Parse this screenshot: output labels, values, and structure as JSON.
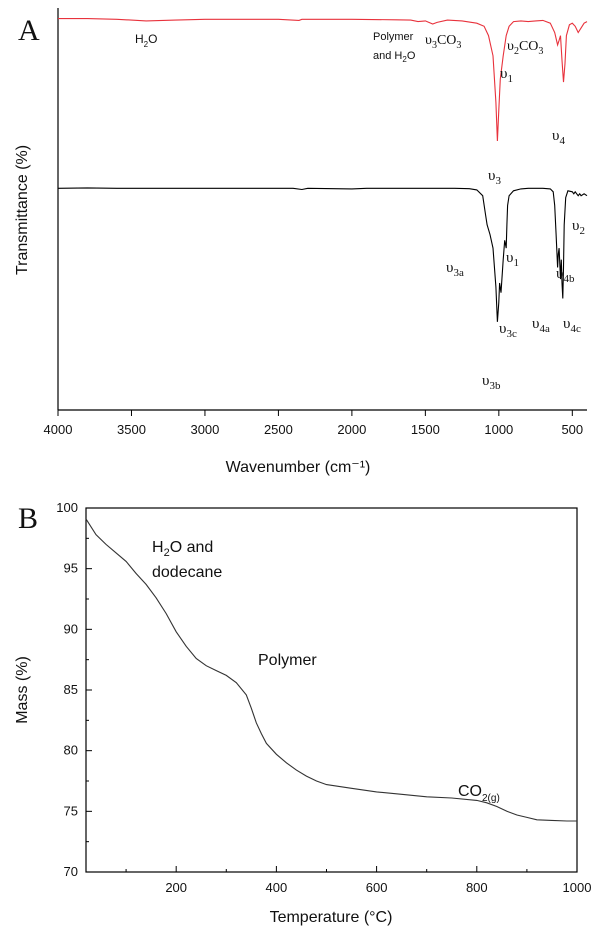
{
  "chart_data": [
    {
      "type": "line",
      "panel_label": "A",
      "xlabel": "Wavenumber (cm⁻¹)",
      "ylabel": "Transmittance (%)",
      "xlim": [
        4000,
        400
      ],
      "x_ticks": [
        4000,
        3500,
        3000,
        2500,
        2000,
        1500,
        1000,
        500
      ],
      "y_ticks_shown": false,
      "series": [
        {
          "color": "#e8323c",
          "points": [
            [
              4000,
              99
            ],
            [
              3800,
              99
            ],
            [
              3600,
              98.5
            ],
            [
              3400,
              97.5
            ],
            [
              3200,
              98
            ],
            [
              3000,
              98.5
            ],
            [
              2700,
              98.5
            ],
            [
              2500,
              98.5
            ],
            [
              2360,
              97.8
            ],
            [
              2340,
              98.5
            ],
            [
              2000,
              98.5
            ],
            [
              1700,
              98.2
            ],
            [
              1600,
              98
            ],
            [
              1550,
              97
            ],
            [
              1500,
              97.5
            ],
            [
              1450,
              95.5
            ],
            [
              1420,
              96.5
            ],
            [
              1350,
              98
            ],
            [
              1250,
              97.5
            ],
            [
              1150,
              96
            ],
            [
              1100,
              94
            ],
            [
              1070,
              88
            ],
            [
              1040,
              75
            ],
            [
              1020,
              45
            ],
            [
              1010,
              20
            ],
            [
              1000,
              40
            ],
            [
              990,
              60
            ],
            [
              970,
              75
            ],
            [
              950,
              88
            ],
            [
              930,
              94
            ],
            [
              900,
              97
            ],
            [
              850,
              97.5
            ],
            [
              800,
              97
            ],
            [
              750,
              97.5
            ],
            [
              700,
              97.8
            ],
            [
              650,
              96
            ],
            [
              620,
              90
            ],
            [
              600,
              82
            ],
            [
              590,
              85
            ],
            [
              580,
              88
            ],
            [
              570,
              72
            ],
            [
              560,
              58
            ],
            [
              550,
              70
            ],
            [
              540,
              88
            ],
            [
              520,
              95
            ],
            [
              500,
              96
            ],
            [
              480,
              94
            ],
            [
              460,
              90
            ],
            [
              440,
              93
            ],
            [
              420,
              96
            ],
            [
              400,
              97
            ]
          ]
        },
        {
          "color": "#000000",
          "points": [
            [
              4000,
              98.8
            ],
            [
              3800,
              99
            ],
            [
              3600,
              98.8
            ],
            [
              3400,
              98.8
            ],
            [
              3200,
              98.8
            ],
            [
              3000,
              98.8
            ],
            [
              2700,
              98.8
            ],
            [
              2400,
              98.8
            ],
            [
              2340,
              98.2
            ],
            [
              2300,
              98.8
            ],
            [
              2000,
              98.5
            ],
            [
              1900,
              98.8
            ],
            [
              1700,
              98.8
            ],
            [
              1500,
              98.8
            ],
            [
              1300,
              98.8
            ],
            [
              1200,
              98.6
            ],
            [
              1150,
              98
            ],
            [
              1110,
              95
            ],
            [
              1090,
              85
            ],
            [
              1080,
              80
            ],
            [
              1060,
              75
            ],
            [
              1040,
              68
            ],
            [
              1020,
              48
            ],
            [
              1010,
              30
            ],
            [
              1000,
              40
            ],
            [
              995,
              50
            ],
            [
              985,
              45
            ],
            [
              970,
              62
            ],
            [
              960,
              72
            ],
            [
              950,
              68
            ],
            [
              945,
              80
            ],
            [
              940,
              90
            ],
            [
              930,
              95
            ],
            [
              900,
              97.5
            ],
            [
              850,
              98.5
            ],
            [
              800,
              98.8
            ],
            [
              750,
              98.8
            ],
            [
              700,
              98.8
            ],
            [
              650,
              98.5
            ],
            [
              630,
              97
            ],
            [
              620,
              90
            ],
            [
              610,
              75
            ],
            [
              600,
              58
            ],
            [
              595,
              65
            ],
            [
              590,
              68
            ],
            [
              580,
              52
            ],
            [
              575,
              62
            ],
            [
              570,
              50
            ],
            [
              565,
              42
            ],
            [
              560,
              58
            ],
            [
              555,
              80
            ],
            [
              545,
              94
            ],
            [
              530,
              97.5
            ],
            [
              500,
              97
            ],
            [
              490,
              96
            ],
            [
              480,
              97
            ],
            [
              470,
              96
            ],
            [
              460,
              95
            ],
            [
              450,
              96
            ],
            [
              440,
              95
            ],
            [
              420,
              96
            ],
            [
              400,
              95
            ]
          ]
        }
      ],
      "annotations": {
        "h2o": {
          "main": "H",
          "sub": "2",
          "rest": "O"
        },
        "polymer": {
          "line1": "Polymer",
          "line2": "and H",
          "sub": "2",
          "rest": "O"
        },
        "v3co3": {
          "main": "υ",
          "sub": "3",
          "rest": "CO",
          "sub2": "3"
        },
        "v2co3": {
          "main": "υ",
          "sub": "2",
          "rest": "CO",
          "sub2": "3"
        },
        "red_v1": {
          "main": "υ",
          "sub": "1"
        },
        "red_v3": {
          "main": "υ",
          "sub": "3"
        },
        "red_v4": {
          "main": "υ",
          "sub": "4"
        },
        "v3a": {
          "main": "υ",
          "sub": "3a"
        },
        "v1": {
          "main": "υ",
          "sub": "1"
        },
        "v3c": {
          "main": "υ",
          "sub": "3c"
        },
        "v3b": {
          "main": "υ",
          "sub": "3b"
        },
        "v4a": {
          "main": "υ",
          "sub": "4a"
        },
        "v4b": {
          "main": "υ",
          "sub": "4b"
        },
        "v4c": {
          "main": "υ",
          "sub": "4c"
        },
        "v2": {
          "main": "υ",
          "sub": "2"
        }
      }
    },
    {
      "type": "line",
      "panel_label": "B",
      "xlabel": "Temperature (°C)",
      "ylabel": "Mass (%)",
      "xlim": [
        20,
        1000
      ],
      "ylim": [
        70,
        100
      ],
      "x_ticks": [
        200,
        400,
        600,
        800,
        1000
      ],
      "y_ticks": [
        70,
        75,
        80,
        85,
        90,
        95,
        100
      ],
      "series": [
        {
          "color": "#333333",
          "points": [
            [
              20,
              99.1
            ],
            [
              40,
              97.8
            ],
            [
              60,
              97
            ],
            [
              80,
              96.3
            ],
            [
              100,
              95.6
            ],
            [
              120,
              94.6
            ],
            [
              140,
              93.7
            ],
            [
              160,
              92.6
            ],
            [
              180,
              91.3
            ],
            [
              200,
              89.8
            ],
            [
              220,
              88.6
            ],
            [
              240,
              87.6
            ],
            [
              260,
              87
            ],
            [
              280,
              86.6
            ],
            [
              300,
              86.2
            ],
            [
              320,
              85.6
            ],
            [
              340,
              84.6
            ],
            [
              350,
              83.5
            ],
            [
              360,
              82.3
            ],
            [
              370,
              81.4
            ],
            [
              380,
              80.6
            ],
            [
              400,
              79.7
            ],
            [
              420,
              79
            ],
            [
              440,
              78.4
            ],
            [
              460,
              77.9
            ],
            [
              480,
              77.5
            ],
            [
              500,
              77.2
            ],
            [
              550,
              76.9
            ],
            [
              600,
              76.6
            ],
            [
              650,
              76.4
            ],
            [
              700,
              76.2
            ],
            [
              750,
              76.1
            ],
            [
              800,
              75.9
            ],
            [
              820,
              75.7
            ],
            [
              840,
              75.4
            ],
            [
              860,
              75
            ],
            [
              880,
              74.7
            ],
            [
              900,
              74.5
            ],
            [
              920,
              74.3
            ],
            [
              950,
              74.25
            ],
            [
              980,
              74.2
            ],
            [
              1000,
              74.2
            ]
          ]
        }
      ],
      "annotations": {
        "h2o_line1": {
          "main": "H",
          "sub": "2",
          "rest": "O and"
        },
        "h2o_line2": "dodecane",
        "polymer": "Polymer",
        "co2": {
          "main": "CO",
          "sub": "2(g)"
        }
      }
    }
  ]
}
